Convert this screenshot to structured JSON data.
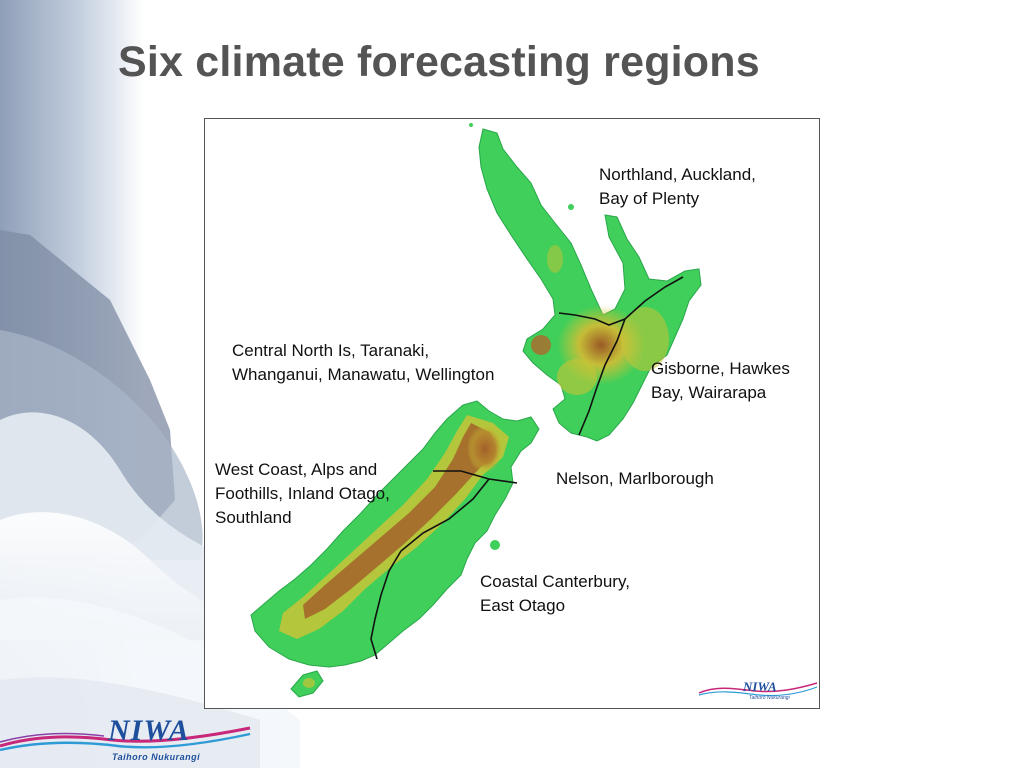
{
  "slide": {
    "title": "Six climate forecasting regions"
  },
  "map": {
    "regions": [
      {
        "lines": [
          "Northland, Auckland,",
          "Bay of Plenty"
        ]
      },
      {
        "lines": [
          "Central North Is, Taranaki,",
          "Whanganui, Manawatu, Wellington"
        ]
      },
      {
        "lines": [
          "Gisborne, Hawkes",
          "Bay, Wairarapa"
        ]
      },
      {
        "lines": [
          "Nelson, Marlborough"
        ]
      },
      {
        "lines": [
          "West Coast, Alps and",
          "Foothills, Inland Otago,",
          "Southland"
        ]
      },
      {
        "lines": [
          "Coastal Canterbury,",
          "East Otago"
        ]
      }
    ],
    "legend_colors": {
      "lowland": "#3fcf5a",
      "midland": "#c9c436",
      "upland": "#b0682a",
      "boundary": "#111111"
    }
  },
  "branding": {
    "logo_text": "NIWA",
    "logo_subtitle": "Taihoro Nukurangi",
    "map_logo_text": "NIWA",
    "map_logo_subtitle": "Taihoro Nukurangi",
    "brand_blue": "#1e4f9c",
    "swoosh_colors": [
      "#c8287a",
      "#2e9bd6",
      "#8a3fa6"
    ]
  }
}
